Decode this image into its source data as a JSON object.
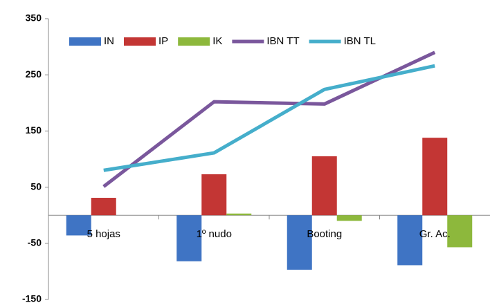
{
  "chart_data": {
    "type": "bar",
    "categories": [
      "5 hojas",
      "1º nudo",
      "Booting",
      "Gr. Ac."
    ],
    "series": [
      {
        "name": "IN",
        "type": "bar",
        "color": "#3f74c4",
        "values": [
          -36,
          -82,
          -97,
          -89
        ]
      },
      {
        "name": "IP",
        "type": "bar",
        "color": "#c33634",
        "values": [
          31,
          73,
          105,
          138
        ]
      },
      {
        "name": "IK",
        "type": "bar",
        "color": "#8db83c",
        "values": [
          0,
          3,
          -10,
          -57
        ]
      },
      {
        "name": "IBN TT",
        "type": "line",
        "color": "#7a579c",
        "values": [
          51,
          202,
          198,
          290
        ]
      },
      {
        "name": "IBN TL",
        "type": "line",
        "color": "#45aecb",
        "values": [
          80,
          111,
          224,
          266
        ]
      }
    ],
    "ylim": [
      -150,
      350
    ],
    "yticks": [
      -150,
      -50,
      50,
      150,
      250,
      350
    ],
    "grid": false,
    "legend": "top"
  }
}
